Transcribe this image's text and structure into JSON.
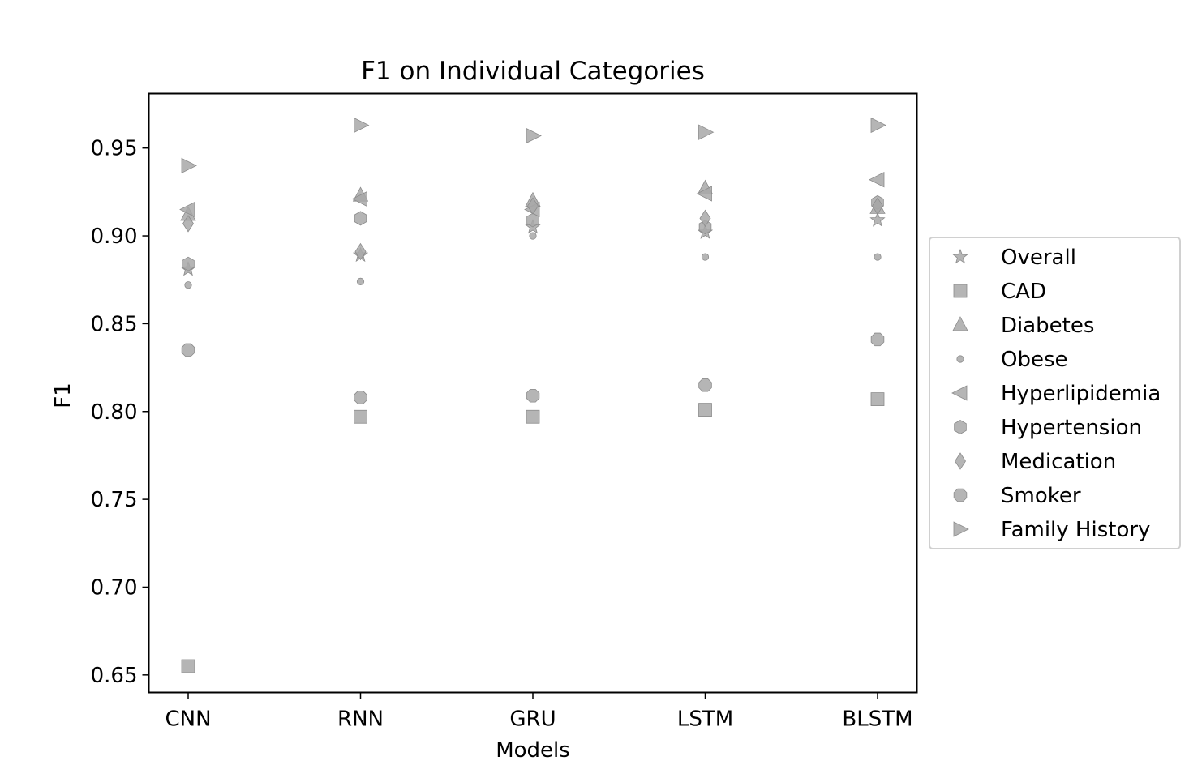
{
  "chart_data": {
    "type": "scatter",
    "title": "F1 on Individual Categories",
    "xlabel": "Models",
    "ylabel": "F1",
    "categories": [
      "CNN",
      "RNN",
      "GRU",
      "LSTM",
      "BLSTM"
    ],
    "ylim": [
      0.64,
      0.981
    ],
    "yticks": [
      0.65,
      0.7,
      0.75,
      0.8,
      0.85,
      0.9,
      0.95
    ],
    "ytick_labels": [
      "0.65",
      "0.70",
      "0.75",
      "0.80",
      "0.85",
      "0.90",
      "0.95"
    ],
    "grid": false,
    "legend_position": "center-right outside",
    "marker_color": "#a8a8a8",
    "marker_edge_color": "#8c8c8c",
    "series": [
      {
        "name": "Overall",
        "marker": "star",
        "values": [
          0.881,
          0.889,
          0.905,
          0.902,
          0.909
        ]
      },
      {
        "name": "CAD",
        "marker": "square",
        "values": [
          0.655,
          0.797,
          0.797,
          0.801,
          0.807
        ]
      },
      {
        "name": "Diabetes",
        "marker": "triangle-up",
        "values": [
          0.912,
          0.923,
          0.92,
          0.927,
          0.916
        ]
      },
      {
        "name": "Obese",
        "marker": "point",
        "values": [
          0.872,
          0.874,
          0.9,
          0.888,
          0.888
        ]
      },
      {
        "name": "Hyperlipidemia",
        "marker": "triangle-left",
        "values": [
          0.915,
          0.921,
          0.915,
          0.924,
          0.932
        ]
      },
      {
        "name": "Hypertension",
        "marker": "hexagon",
        "values": [
          0.884,
          0.91,
          0.909,
          0.905,
          0.919
        ]
      },
      {
        "name": "Medication",
        "marker": "diamond",
        "values": [
          0.907,
          0.891,
          0.917,
          0.91,
          0.917
        ]
      },
      {
        "name": "Smoker",
        "marker": "octagon",
        "values": [
          0.835,
          0.808,
          0.809,
          0.815,
          0.841
        ]
      },
      {
        "name": "Family History",
        "marker": "triangle-right",
        "values": [
          0.94,
          0.963,
          0.957,
          0.959,
          0.963
        ]
      }
    ]
  }
}
